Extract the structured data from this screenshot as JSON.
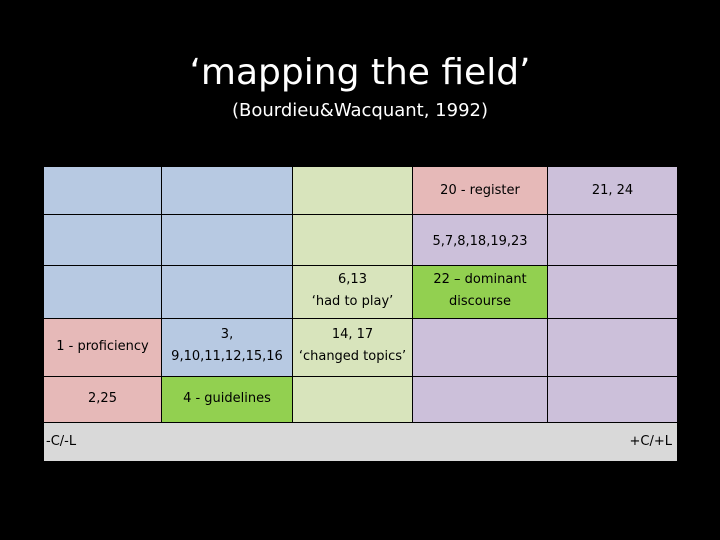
{
  "title": "‘mapping the field’",
  "subtitle": "(Bourdieu&Wacquant, 1992)",
  "cells": {
    "register": "20 - register",
    "r1_purple": "21, 24",
    "r2_span": "5,7,8,18,19,23",
    "r3_green_l1": "6,13",
    "r3_green_l2": "‘had to play’",
    "r3_dominant_l1": "22 – dominant",
    "r3_dominant_l2": "discourse",
    "proficiency": "1 - proficiency",
    "r4_blue_l1": "3,",
    "r4_blue_l2": "9,10,11,12,15,16",
    "r4_green_l1": "14, 17",
    "r4_green_l2": "‘changed topics’",
    "r5_red": "2,25",
    "guidelines": "4 - guidelines",
    "axis_left": "-C/-L",
    "axis_right": "+C/+L"
  }
}
